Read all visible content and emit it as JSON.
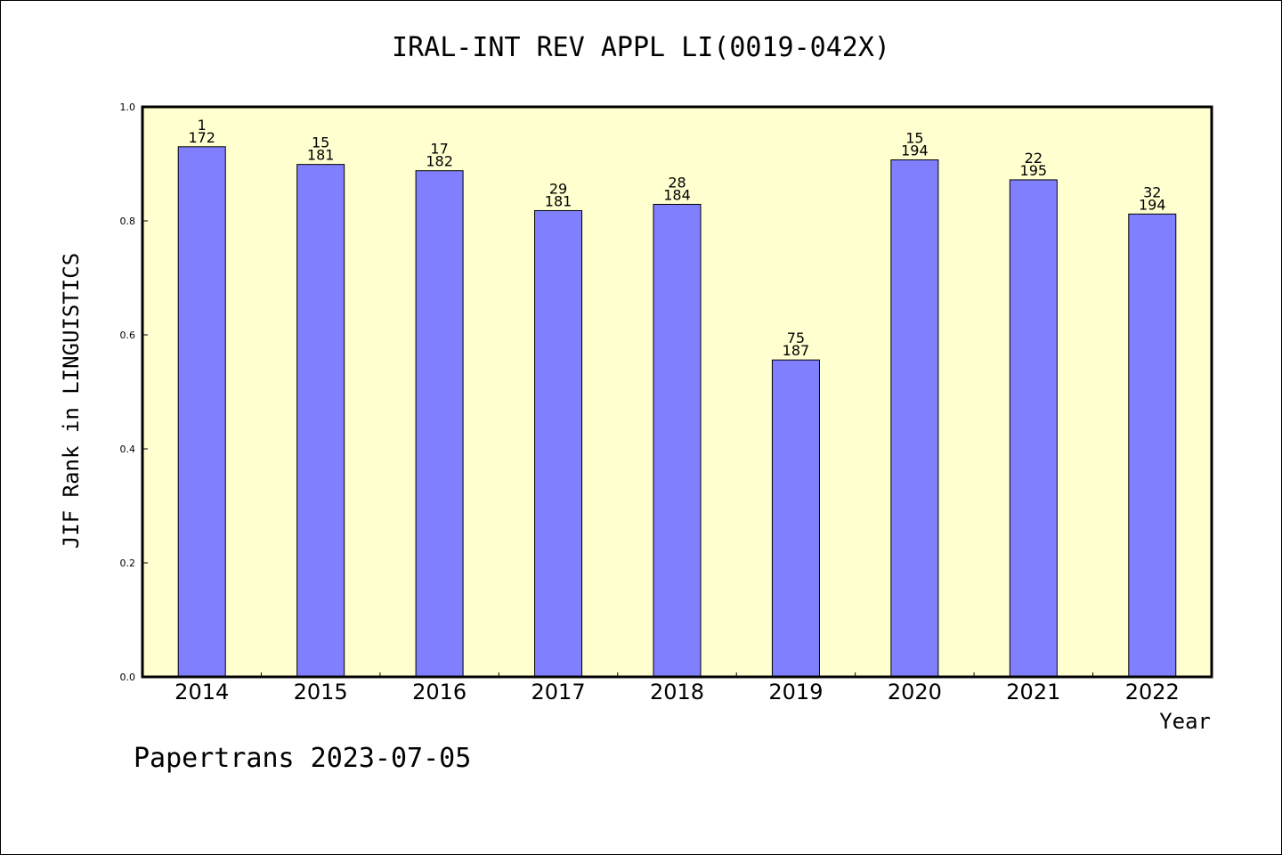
{
  "chart_data": {
    "type": "bar",
    "title": "IRAL-INT REV APPL LI(0019-042X)",
    "ylabel": "JIF Rank in LINGUISTICS",
    "xlabel": "Year",
    "ylim": [
      0,
      1.0
    ],
    "yticks": [
      "0.0",
      "0.2",
      "0.4",
      "0.6",
      "0.8",
      "1.0"
    ],
    "grid": false,
    "categories": [
      "2014",
      "2015",
      "2016",
      "2017",
      "2018",
      "2019",
      "2020",
      "2021",
      "2022"
    ],
    "values": [
      0.93,
      0.899,
      0.888,
      0.818,
      0.829,
      0.556,
      0.907,
      0.872,
      0.812
    ],
    "rank": [
      "1",
      "15",
      "17",
      "29",
      "28",
      "75",
      "15",
      "22",
      "32"
    ],
    "total": [
      "172",
      "181",
      "182",
      "181",
      "184",
      "187",
      "194",
      "195",
      "194"
    ],
    "colors": {
      "bar": "#8080ff",
      "plot_background": "#ffffd0"
    }
  },
  "footer": "Papertrans 2023-07-05"
}
